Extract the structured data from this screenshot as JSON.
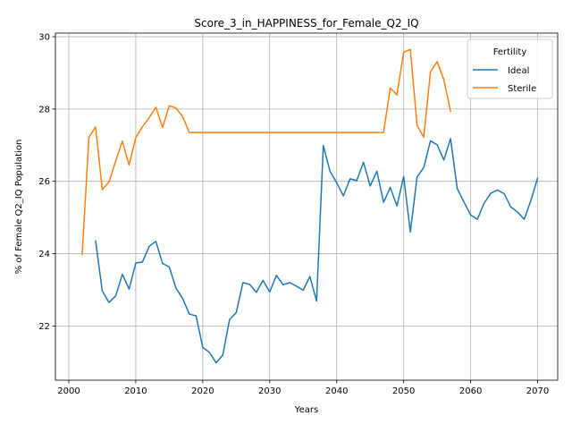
{
  "chart_data": {
    "type": "line",
    "title": "Score_3_in_HAPPINESS_for_Female_Q2_IQ",
    "xlabel": "Years",
    "ylabel": "% of Female Q2_IQ Population",
    "xlim": [
      1998,
      2073
    ],
    "ylim": [
      20.5,
      30.1
    ],
    "xticks": [
      2000,
      2010,
      2020,
      2030,
      2040,
      2050,
      2060,
      2070
    ],
    "yticks": [
      22,
      24,
      26,
      28,
      30
    ],
    "grid": true,
    "legend": {
      "title": "Fertility",
      "placement": "top-right"
    },
    "series": [
      {
        "name": "Ideal",
        "color": "#1f77b4",
        "x": [
          2004,
          2005,
          2006,
          2007,
          2008,
          2009,
          2010,
          2011,
          2012,
          2013,
          2014,
          2015,
          2016,
          2017,
          2018,
          2019,
          2020,
          2021,
          2022,
          2023,
          2024,
          2025,
          2026,
          2027,
          2028,
          2029,
          2030,
          2031,
          2032,
          2033,
          2034,
          2035,
          2036,
          2037,
          2038,
          2039,
          2040,
          2041,
          2042,
          2043,
          2044,
          2045,
          2046,
          2047,
          2048,
          2049,
          2050,
          2051,
          2052,
          2053,
          2054,
          2055,
          2056,
          2057,
          2058,
          2059,
          2060,
          2061,
          2062,
          2063,
          2064,
          2065,
          2066,
          2067,
          2068,
          2069,
          2070
        ],
        "values": [
          24.35,
          22.97,
          22.65,
          22.83,
          23.43,
          23.02,
          23.74,
          23.77,
          24.2,
          24.34,
          23.73,
          23.63,
          23.05,
          22.76,
          22.33,
          22.28,
          21.41,
          21.27,
          20.98,
          21.2,
          22.18,
          22.37,
          23.2,
          23.15,
          22.93,
          23.26,
          22.94,
          23.4,
          23.14,
          23.2,
          23.1,
          22.99,
          23.37,
          22.69,
          26.99,
          26.28,
          25.96,
          25.6,
          26.07,
          26.02,
          26.53,
          25.87,
          26.28,
          25.42,
          25.83,
          25.32,
          26.13,
          24.6,
          26.12,
          26.38,
          27.12,
          27.01,
          26.59,
          27.18,
          25.8,
          25.43,
          25.07,
          24.95,
          25.39,
          25.67,
          25.76,
          25.66,
          25.29,
          25.15,
          24.95,
          25.47,
          26.09
        ]
      },
      {
        "name": "Sterile",
        "color": "#ff7f0e",
        "x": [
          2002,
          2003,
          2004,
          2005,
          2006,
          2007,
          2008,
          2009,
          2010,
          2011,
          2012,
          2013,
          2014,
          2015,
          2016,
          2017,
          2018,
          2019,
          2020,
          2021,
          2022,
          2023,
          2024,
          2025,
          2026,
          2027,
          2028,
          2029,
          2030,
          2031,
          2032,
          2033,
          2034,
          2035,
          2036,
          2037,
          2038,
          2039,
          2040,
          2041,
          2042,
          2043,
          2044,
          2045,
          2046,
          2047,
          2048,
          2049,
          2050,
          2051,
          2052,
          2053,
          2054,
          2055,
          2056,
          2057
        ],
        "values": [
          23.97,
          27.22,
          27.5,
          25.77,
          25.98,
          26.56,
          27.11,
          26.45,
          27.21,
          27.51,
          27.76,
          28.05,
          27.49,
          28.09,
          28.03,
          27.79,
          27.35,
          27.35,
          27.35,
          27.35,
          27.35,
          27.35,
          27.35,
          27.35,
          27.35,
          27.35,
          27.35,
          27.35,
          27.35,
          27.35,
          27.35,
          27.35,
          27.35,
          27.35,
          27.35,
          27.35,
          27.35,
          27.35,
          27.35,
          27.35,
          27.35,
          27.35,
          27.35,
          27.35,
          27.35,
          27.35,
          28.58,
          28.39,
          29.57,
          29.65,
          27.55,
          27.22,
          29.03,
          29.31,
          28.81,
          27.94
        ]
      }
    ]
  }
}
